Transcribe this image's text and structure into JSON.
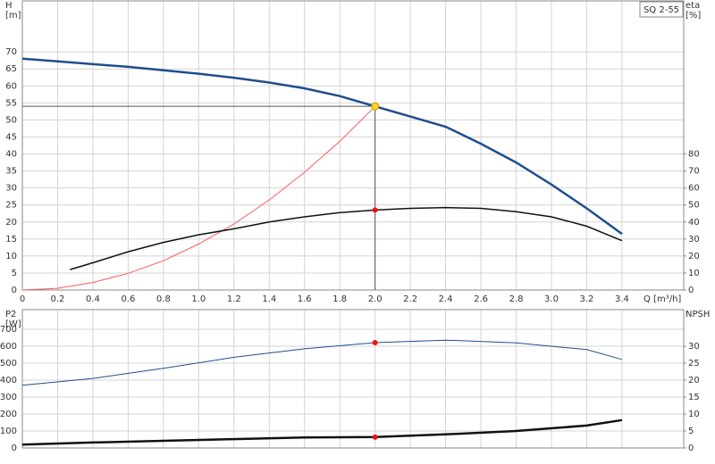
{
  "chart_data": [
    {
      "type": "line",
      "model": "SQ 2-55",
      "y_label": "H",
      "y_unit": "[m]",
      "y2_label": "eta",
      "y2_unit": "[%]",
      "x_label": "Q [m³/h]",
      "xlim": [
        0,
        3.75
      ],
      "ylim": [
        0,
        85
      ],
      "y2lim": [
        0,
        170
      ],
      "grid": true,
      "xticks": [
        0,
        0.2,
        0.4,
        0.6,
        0.8,
        {
          "value": 1,
          "label": "1.0"
        },
        1.2,
        1.4,
        1.6,
        1.8,
        {
          "value": 2,
          "label": "2.0"
        },
        2.2,
        2.4,
        2.6,
        2.8,
        {
          "value": 3,
          "label": "3.0"
        },
        3.2,
        3.4
      ],
      "yticks": [
        0,
        5,
        10,
        15,
        20,
        25,
        30,
        35,
        40,
        45,
        50,
        55,
        60,
        65,
        70
      ],
      "y2ticks": [
        0,
        10,
        20,
        30,
        40,
        50,
        60,
        70,
        80
      ],
      "series": [
        {
          "color": "#1f4e8c",
          "width": 2.5,
          "x": [
            0,
            0.2,
            0.4,
            0.6,
            0.8,
            1,
            1.2,
            1.4,
            1.6,
            1.8,
            2,
            2.2,
            2.4,
            2.6,
            2.8,
            3,
            3.2,
            3.4
          ],
          "values": [
            68,
            67.2,
            66.4,
            65.6,
            64.6,
            63.6,
            62.4,
            61,
            59.3,
            57,
            54,
            51,
            48,
            43,
            37.5,
            31,
            24,
            16.5
          ]
        },
        {
          "color": "#ff5a5a",
          "width": 1,
          "x": [
            0,
            0.2,
            0.4,
            0.6,
            0.8,
            1,
            1.2,
            1.4,
            1.6,
            1.8,
            2
          ],
          "values": [
            0,
            0.5,
            2.2,
            4.9,
            8.6,
            13.5,
            19.4,
            26.5,
            34.6,
            43.7,
            54
          ]
        },
        {
          "color": "#111111",
          "width": 1.5,
          "axis": "y2",
          "x": [
            0.27,
            0.4,
            0.6,
            0.8,
            1,
            1.2,
            1.4,
            1.6,
            1.8,
            2,
            2.2,
            2.4,
            2.6,
            2.8,
            3,
            3.2,
            3.4
          ],
          "values": [
            12,
            16,
            22.5,
            28,
            32.5,
            36,
            40,
            43,
            45.5,
            47,
            48,
            48.5,
            48,
            46,
            43,
            37.5,
            29
          ]
        }
      ],
      "points": [
        {
          "x": 2,
          "y": 54,
          "color": "#ffd21f",
          "guides": true
        },
        {
          "x": 2,
          "y": 47,
          "axis": "y2",
          "color": "#ee1111"
        }
      ]
    },
    {
      "type": "line",
      "y_label": "P2",
      "y_unit": "[W]",
      "y2_label": "NPSH",
      "xlim": [
        0,
        3.75
      ],
      "ylim": [
        0,
        816
      ],
      "y2lim": [
        0,
        40.8
      ],
      "grid": true,
      "yticks": [
        0,
        100,
        200,
        300,
        400,
        500,
        600,
        700
      ],
      "y2ticks": [
        0,
        5,
        10,
        15,
        20,
        25,
        30
      ],
      "series": [
        {
          "color": "#1f4e8c",
          "width": 1,
          "x": [
            0,
            0.4,
            0.8,
            1.2,
            1.6,
            2,
            2.4,
            2.8,
            3.2,
            3.4
          ],
          "values": [
            370,
            410,
            470,
            535,
            585,
            621,
            636,
            620,
            580,
            522
          ]
        },
        {
          "color": "#111111",
          "width": 2.5,
          "axis": "y2",
          "x": [
            0,
            0.4,
            0.8,
            1.2,
            1.6,
            2,
            2.4,
            2.8,
            3.2,
            3.4
          ],
          "values": [
            1,
            1.6,
            2.1,
            2.6,
            3.1,
            3.2,
            4,
            5,
            6.6,
            8.2
          ]
        }
      ],
      "points": [
        {
          "x": 2,
          "y": 621,
          "color": "#ee1111"
        },
        {
          "x": 2,
          "y": 3.2,
          "axis": "y2",
          "color": "#ee1111"
        }
      ]
    }
  ]
}
